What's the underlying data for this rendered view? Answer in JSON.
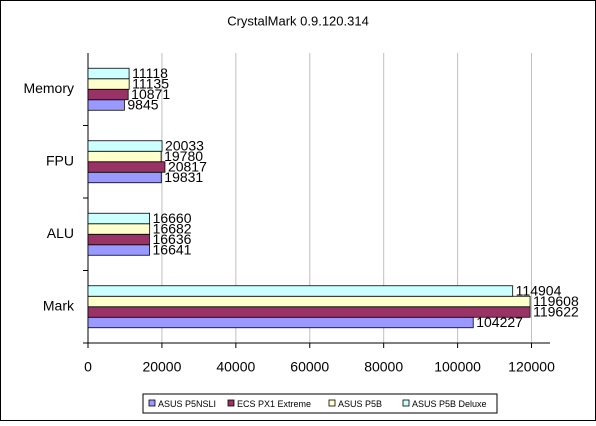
{
  "chart_data": {
    "type": "bar",
    "orientation": "horizontal",
    "title": "CrystalMark 0.9.120.314",
    "categories": [
      "Mark",
      "ALU",
      "FPU",
      "Memory"
    ],
    "series": [
      {
        "name": "ASUS P5NSLI",
        "color": "#9999ff",
        "values": [
          104227,
          16641,
          19831,
          9845
        ]
      },
      {
        "name": "ECS PX1 Extreme",
        "color": "#993366",
        "values": [
          119622,
          16636,
          20817,
          10871
        ]
      },
      {
        "name": "ASUS P5B",
        "color": "#ffffcc",
        "values": [
          119608,
          16682,
          19780,
          11135
        ]
      },
      {
        "name": "ASUS P5B Deluxe",
        "color": "#ccffff",
        "values": [
          114904,
          16660,
          20033,
          11118
        ]
      }
    ],
    "xlim": [
      0,
      125000
    ],
    "xticks": [
      0,
      20000,
      40000,
      60000,
      80000,
      100000,
      120000
    ],
    "grid": true,
    "legend": "bottom"
  }
}
